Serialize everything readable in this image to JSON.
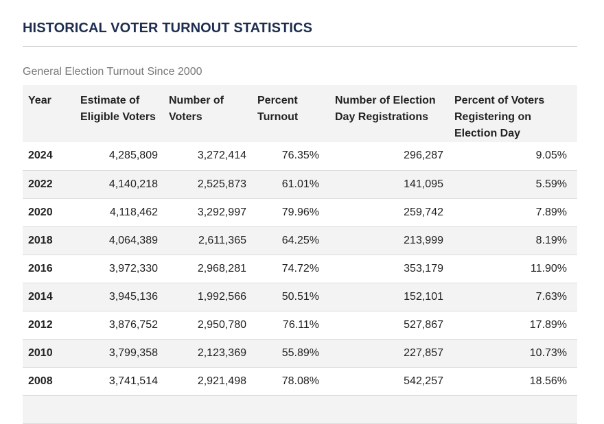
{
  "page": {
    "title": "HISTORICAL VOTER TURNOUT STATISTICS",
    "caption": "General Election Turnout Since 2000"
  },
  "table": {
    "headers": [
      "Year",
      "Estimate of Eligible Voters",
      "Number of Voters",
      "Percent Turnout",
      "Number of Election Day Registrations",
      "Percent of Voters Registering on Election Day"
    ],
    "rows": [
      [
        "2024",
        "4,285,809",
        "3,272,414",
        "76.35%",
        "296,287",
        "9.05%"
      ],
      [
        "2022",
        "4,140,218",
        "2,525,873",
        "61.01%",
        "141,095",
        "5.59%"
      ],
      [
        "2020",
        "4,118,462",
        "3,292,997",
        "79.96%",
        "259,742",
        "7.89%"
      ],
      [
        "2018",
        "4,064,389",
        "2,611,365",
        "64.25%",
        "213,999",
        "8.19%"
      ],
      [
        "2016",
        "3,972,330",
        "2,968,281",
        "74.72%",
        "353,179",
        "11.90%"
      ],
      [
        "2014",
        "3,945,136",
        "1,992,566",
        "50.51%",
        "152,101",
        "7.63%"
      ],
      [
        "2012",
        "3,876,752",
        "2,950,780",
        "76.11%",
        "527,867",
        "17.89%"
      ],
      [
        "2010",
        "3,799,358",
        "2,123,369",
        "55.89%",
        "227,857",
        "10.73%"
      ],
      [
        "2008",
        "3,741,514",
        "2,921,498",
        "78.08%",
        "542,257",
        "18.56%"
      ],
      [
        "",
        "",
        "",
        "",
        "",
        ""
      ]
    ]
  },
  "colors": {
    "title": "#1c2d4f",
    "caption": "#777777",
    "stripe": "#f3f3f3",
    "rule": "#c8c8c8"
  }
}
